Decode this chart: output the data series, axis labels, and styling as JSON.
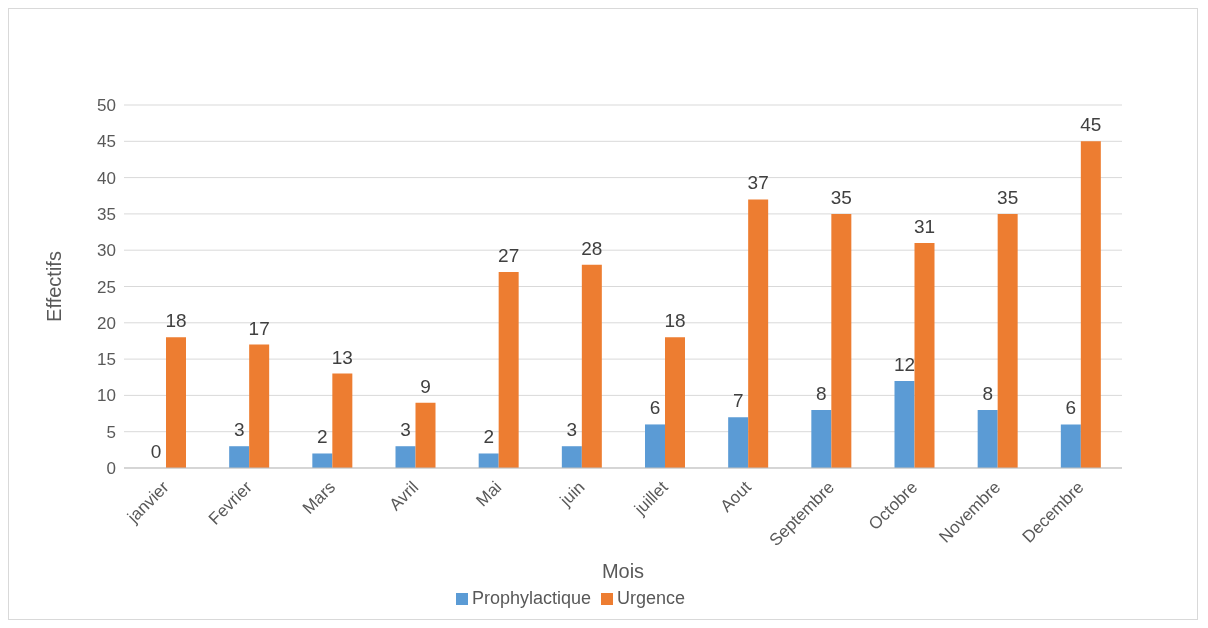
{
  "chart_data": {
    "type": "bar",
    "xlabel": "Mois",
    "ylabel": "Effectifs",
    "categories": [
      "janvier",
      "Fevrier",
      "Mars",
      "Avril",
      "Mai",
      "juin",
      "juillet",
      "Aout",
      "Septembre",
      "Octobre",
      "Novembre",
      "Decembre"
    ],
    "series": [
      {
        "name": "Prophylactique",
        "color": "#5b9bd5",
        "values": [
          0,
          3,
          2,
          3,
          2,
          3,
          6,
          7,
          8,
          12,
          8,
          6
        ]
      },
      {
        "name": "Urgence",
        "color": "#ed7d31",
        "values": [
          18,
          17,
          13,
          9,
          27,
          28,
          18,
          37,
          35,
          31,
          35,
          45
        ]
      }
    ],
    "ylim": [
      0,
      50
    ],
    "yticks": [
      0,
      5,
      10,
      15,
      20,
      25,
      30,
      35,
      40,
      45,
      50
    ],
    "grid": "y",
    "legend": "bottom",
    "data_labels": true
  }
}
